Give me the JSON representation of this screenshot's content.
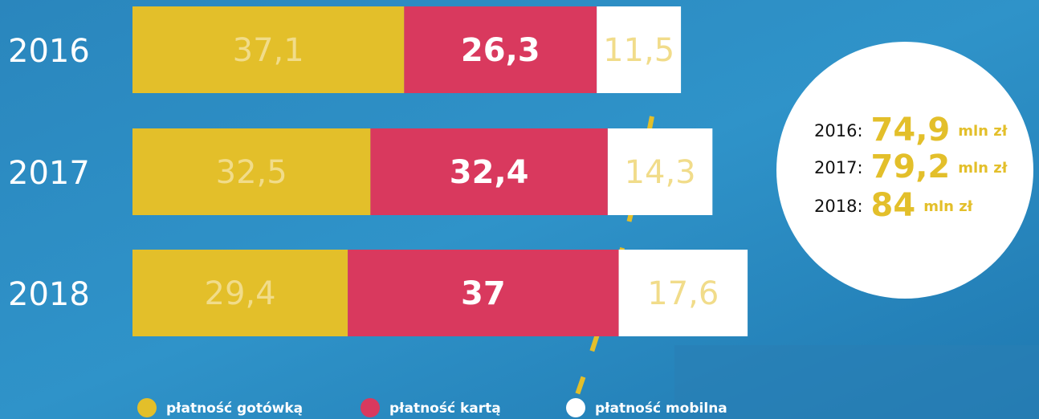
{
  "chart_data": {
    "type": "stacked-bar-horizontal",
    "categories": [
      "2016",
      "2017",
      "2018"
    ],
    "series": [
      {
        "name": "płatność gotówką",
        "color": "#e3bf2a",
        "label_color": "#f1dc8a",
        "values": [
          37.1,
          32.5,
          29.4
        ],
        "value_labels": [
          "37,1",
          "32,5",
          "29,4"
        ]
      },
      {
        "name": "płatność kartą",
        "color": "#d9395e",
        "label_color": "#ffffff",
        "values": [
          26.3,
          32.4,
          37
        ],
        "value_labels": [
          "26,3",
          "32,4",
          "37"
        ]
      },
      {
        "name": "płatność mobilna",
        "color": "#ffffff",
        "label_color": "#f1dc8a",
        "values": [
          11.5,
          14.3,
          17.6
        ],
        "value_labels": [
          "11,5",
          "14,3",
          "17,6"
        ]
      }
    ],
    "totals": [
      {
        "year": "2016:",
        "value": "74,9",
        "unit": "mln zł"
      },
      {
        "year": "2017:",
        "value": "79,2",
        "unit": "mln zł"
      },
      {
        "year": "2018:",
        "value": "84",
        "unit": "mln zł"
      }
    ]
  }
}
